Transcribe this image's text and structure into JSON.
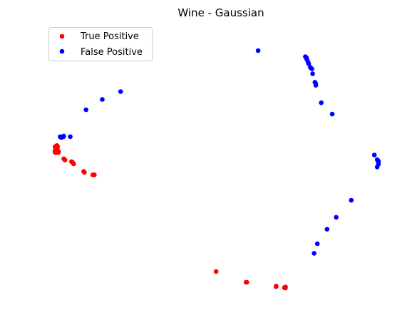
{
  "chart_data": {
    "type": "scatter",
    "title": "Wine - Gaussian",
    "xlabel": "",
    "ylabel": "",
    "axes_visible": false,
    "grid": false,
    "legend_position": "top-left",
    "xlim": [
      0,
      10
    ],
    "ylim": [
      0,
      10
    ],
    "series": [
      {
        "name": "True Positive",
        "color": "#ff0000",
        "points": [
          [
            0.433,
            5.556
          ],
          [
            0.448,
            5.532
          ],
          [
            0.409,
            5.532
          ],
          [
            0.397,
            5.509
          ],
          [
            0.452,
            5.509
          ],
          [
            0.382,
            5.509
          ],
          [
            0.405,
            5.426
          ],
          [
            0.44,
            5.426
          ],
          [
            0.417,
            5.355
          ],
          [
            0.378,
            5.355
          ],
          [
            0.425,
            5.355
          ],
          [
            0.479,
            5.331
          ],
          [
            0.401,
            5.343
          ],
          [
            0.386,
            5.296
          ],
          [
            0.413,
            5.296
          ],
          [
            0.437,
            5.296
          ],
          [
            0.476,
            5.296
          ],
          [
            0.626,
            5.06
          ],
          [
            0.658,
            5.012
          ],
          [
            0.841,
            4.953
          ],
          [
            0.866,
            4.929
          ],
          [
            0.901,
            4.87
          ],
          [
            1.178,
            4.586
          ],
          [
            1.201,
            4.551
          ],
          [
            1.435,
            4.456
          ],
          [
            1.479,
            4.456
          ],
          [
            4.875,
            0.828
          ],
          [
            5.709,
            0.426
          ],
          [
            5.731,
            0.426
          ],
          [
            6.545,
            0.26
          ],
          [
            6.55,
            0.284
          ],
          [
            6.794,
            0.236
          ],
          [
            6.812,
            0.248
          ],
          [
            6.807,
            0.213
          ],
          [
            6.78,
            0.221
          ]
        ]
      },
      {
        "name": "False Positive",
        "color": "#0000ff",
        "points": [
          [
            0.524,
            5.887
          ],
          [
            0.539,
            5.863
          ],
          [
            0.57,
            5.863
          ],
          [
            0.602,
            5.887
          ],
          [
            0.619,
            5.887
          ],
          [
            0.626,
            5.911
          ],
          [
            0.807,
            5.887
          ],
          [
            1.246,
            6.899
          ],
          [
            1.7,
            7.286
          ],
          [
            2.211,
            7.581
          ],
          [
            6.045,
            9.114
          ],
          [
            7.364,
            8.891
          ],
          [
            7.395,
            8.852
          ],
          [
            7.403,
            8.788
          ],
          [
            7.438,
            8.688
          ],
          [
            7.458,
            8.621
          ],
          [
            7.502,
            8.483
          ],
          [
            7.545,
            8.433
          ],
          [
            7.567,
            8.248
          ],
          [
            7.63,
            7.93
          ],
          [
            7.651,
            7.891
          ],
          [
            7.657,
            7.816
          ],
          [
            7.807,
            7.16
          ],
          [
            8.113,
            6.736
          ],
          [
            9.289,
            5.2
          ],
          [
            9.367,
            5.025
          ],
          [
            9.402,
            4.976
          ],
          [
            9.402,
            4.929
          ],
          [
            9.402,
            4.858
          ],
          [
            9.367,
            4.751
          ],
          [
            8.645,
            3.502
          ],
          [
            8.225,
            2.864
          ],
          [
            7.969,
            2.414
          ],
          [
            7.698,
            1.871
          ],
          [
            7.608,
            1.513
          ]
        ]
      }
    ]
  }
}
